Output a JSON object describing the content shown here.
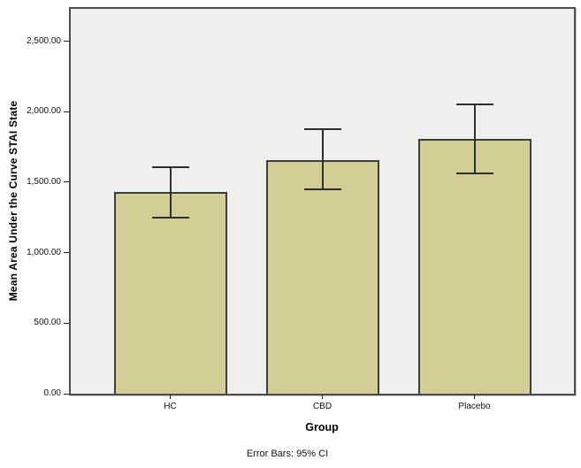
{
  "theme": {
    "figure_bg": "#ffffff",
    "plot_bg": "#f0efed",
    "frame_color": "#4d4d4d",
    "bar_fill": "#d3cd96",
    "bar_border": "#3d3d3d",
    "error_bar_color": "#2e2e2e",
    "text_color": "#111111"
  },
  "chart_data": {
    "type": "bar",
    "title": "",
    "categories": [
      "HC",
      "CBD",
      "Placebo"
    ],
    "values": [
      1430,
      1655,
      1805
    ],
    "error_low": [
      1245,
      1445,
      1555
    ],
    "error_high": [
      1615,
      1880,
      2060
    ],
    "error_bars": "95% CI",
    "xlabel": "Group",
    "ylabel": "Mean Area Under the Curve STAI State",
    "caption": "Error Bars: 95% CI",
    "ylim": [
      0,
      2730
    ],
    "yticks": [
      0,
      500,
      1000,
      1500,
      2000,
      2500
    ],
    "ytick_labels": [
      "0.00",
      "500.00",
      "1,000.00",
      "1,500.00",
      "2,000.00",
      "2,500.00"
    ],
    "grid": false,
    "legend_position": "none"
  }
}
